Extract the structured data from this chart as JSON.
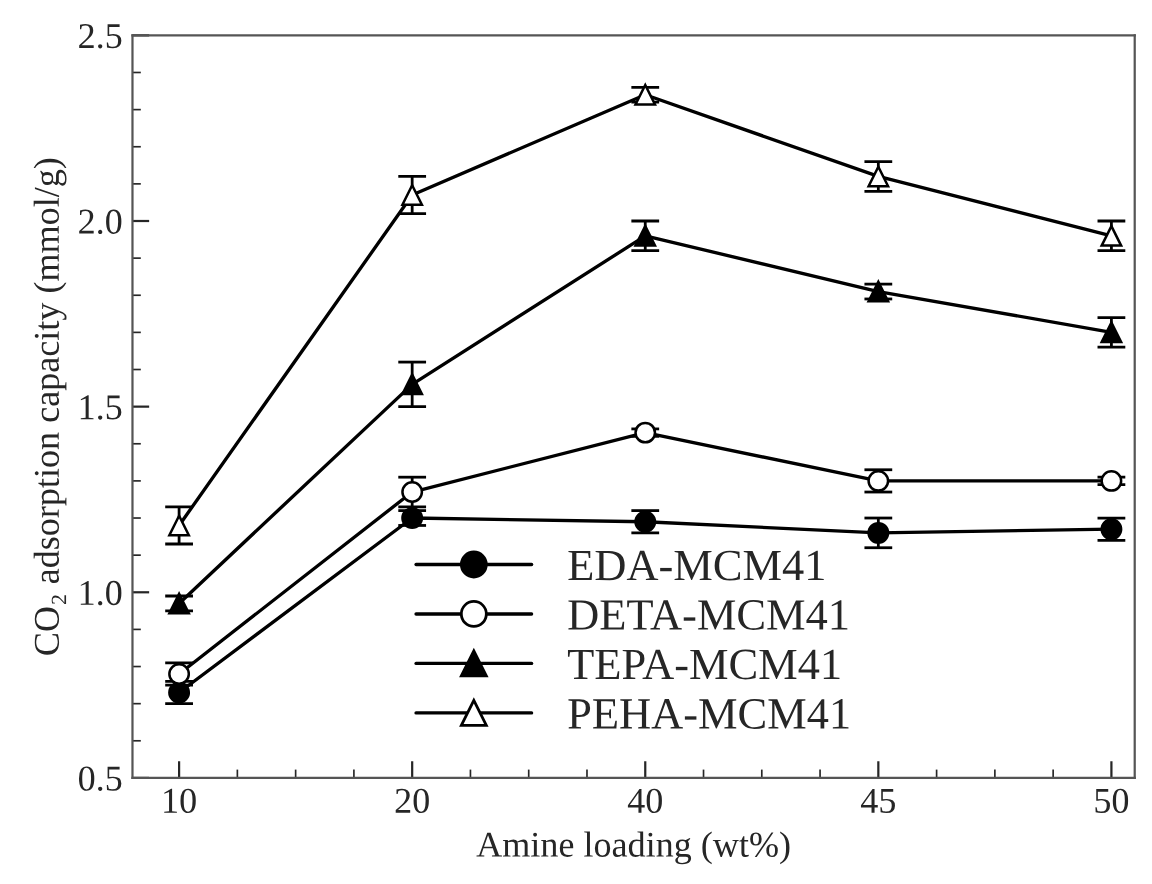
{
  "chart_data": {
    "type": "line",
    "xlabel": "Amine loading (wt%)",
    "ylabel": "CO₂ adsorption capacity (mmol/g)",
    "categories": [
      "10",
      "20",
      "40",
      "45",
      "50"
    ],
    "series": [
      {
        "name": "EDA-MCM41",
        "color": "#000000",
        "marker": "circle",
        "values": [
          0.73,
          1.2,
          1.19,
          1.16,
          1.17
        ],
        "errors": [
          0.03,
          0.02,
          0.03,
          0.04,
          0.03
        ]
      },
      {
        "name": "DETA-MCM41",
        "color": "#000000",
        "marker": "circle",
        "values": [
          0.78,
          1.27,
          1.43,
          1.3,
          1.3
        ],
        "errors": [
          0.03,
          0.04,
          0.01,
          0.03,
          0.01
        ]
      },
      {
        "name": "TEPA-MCM41",
        "color": "#000000",
        "marker": "triangle",
        "values": [
          0.97,
          1.56,
          1.96,
          1.81,
          1.7
        ],
        "errors": [
          0.02,
          0.06,
          0.04,
          0.02,
          0.04
        ]
      },
      {
        "name": "PEHA-MCM41",
        "color": "#000000",
        "marker": "triangle",
        "values": [
          1.18,
          2.07,
          2.34,
          2.12,
          1.96
        ],
        "errors": [
          0.05,
          0.05,
          0.02,
          0.04,
          0.04
        ]
      }
    ],
    "ylim": [
      0.5,
      2.5
    ],
    "yticks": [
      {
        "value": 0.5,
        "label": "0.5"
      },
      {
        "value": 1.0,
        "label": "1.0"
      },
      {
        "value": 1.5,
        "label": "1.5"
      },
      {
        "value": 2.0,
        "label": "2.0"
      },
      {
        "value": 2.5,
        "label": "2.5"
      }
    ],
    "grid": false,
    "legend": "bottom",
    "line_style": "solid"
  }
}
